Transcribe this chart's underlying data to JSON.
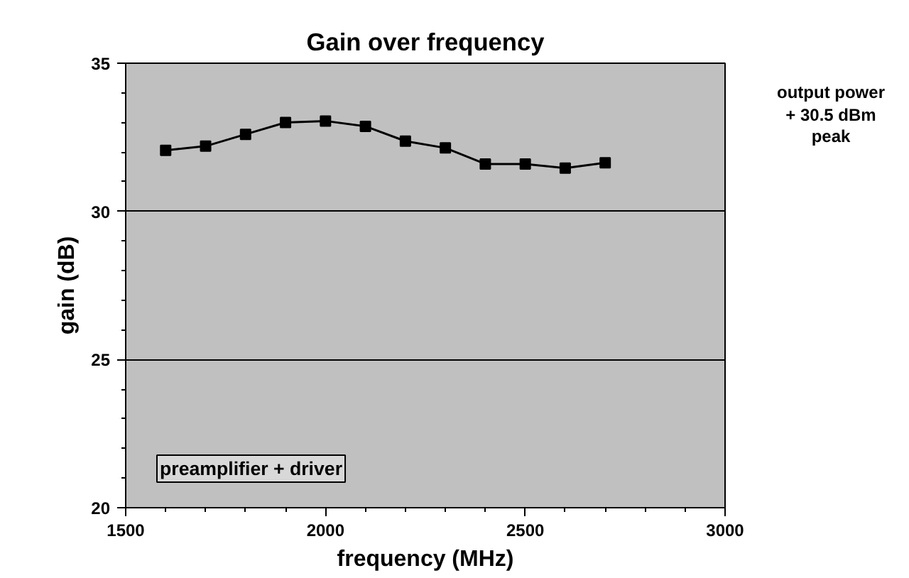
{
  "chart_data": {
    "type": "line",
    "title": "Gain over frequency",
    "xlabel": "frequency (MHz)",
    "ylabel": "gain (dB)",
    "x": [
      1600,
      1700,
      1800,
      1900,
      2000,
      2100,
      2200,
      2300,
      2400,
      2500,
      2600,
      2700
    ],
    "series": [
      {
        "color": "#000000",
        "values": [
          32.06,
          32.2,
          32.6,
          33.0,
          33.05,
          32.87,
          32.37,
          32.14,
          31.6,
          31.6,
          31.46,
          31.64
        ]
      }
    ],
    "xlim": [
      1500,
      3000
    ],
    "ylim": [
      20,
      35
    ],
    "xticks": [
      1500,
      {
        "value": 1600,
        "label": null
      },
      {
        "value": 1700,
        "label": null
      },
      {
        "value": 1800,
        "label": null
      },
      {
        "value": 1900,
        "label": null
      },
      2000,
      {
        "value": 2100,
        "label": null
      },
      {
        "value": 2200,
        "label": null
      },
      {
        "value": 2300,
        "label": null
      },
      {
        "value": 2400,
        "label": null
      },
      2500,
      {
        "value": 2600,
        "label": null
      },
      {
        "value": 2700,
        "label": null
      },
      {
        "value": 2800,
        "label": null
      },
      {
        "value": 2900,
        "label": null
      },
      3000
    ],
    "yticks": [
      20,
      {
        "value": 21,
        "label": null
      },
      {
        "value": 22,
        "label": null
      },
      {
        "value": 23,
        "label": null
      },
      {
        "value": 24,
        "label": null
      },
      25,
      {
        "value": 26,
        "label": null
      },
      {
        "value": 27,
        "label": null
      },
      {
        "value": 28,
        "label": null
      },
      {
        "value": 29,
        "label": null
      },
      30,
      {
        "value": 31,
        "label": null
      },
      {
        "value": 32,
        "label": null
      },
      {
        "value": 33,
        "label": null
      },
      {
        "value": 34,
        "label": null
      },
      35
    ],
    "grid": "y",
    "marker": "square",
    "line_style": "solid",
    "annotations": [
      "output power\n+ 30.5 dBm\npeak",
      "preamplifier + driver"
    ]
  }
}
